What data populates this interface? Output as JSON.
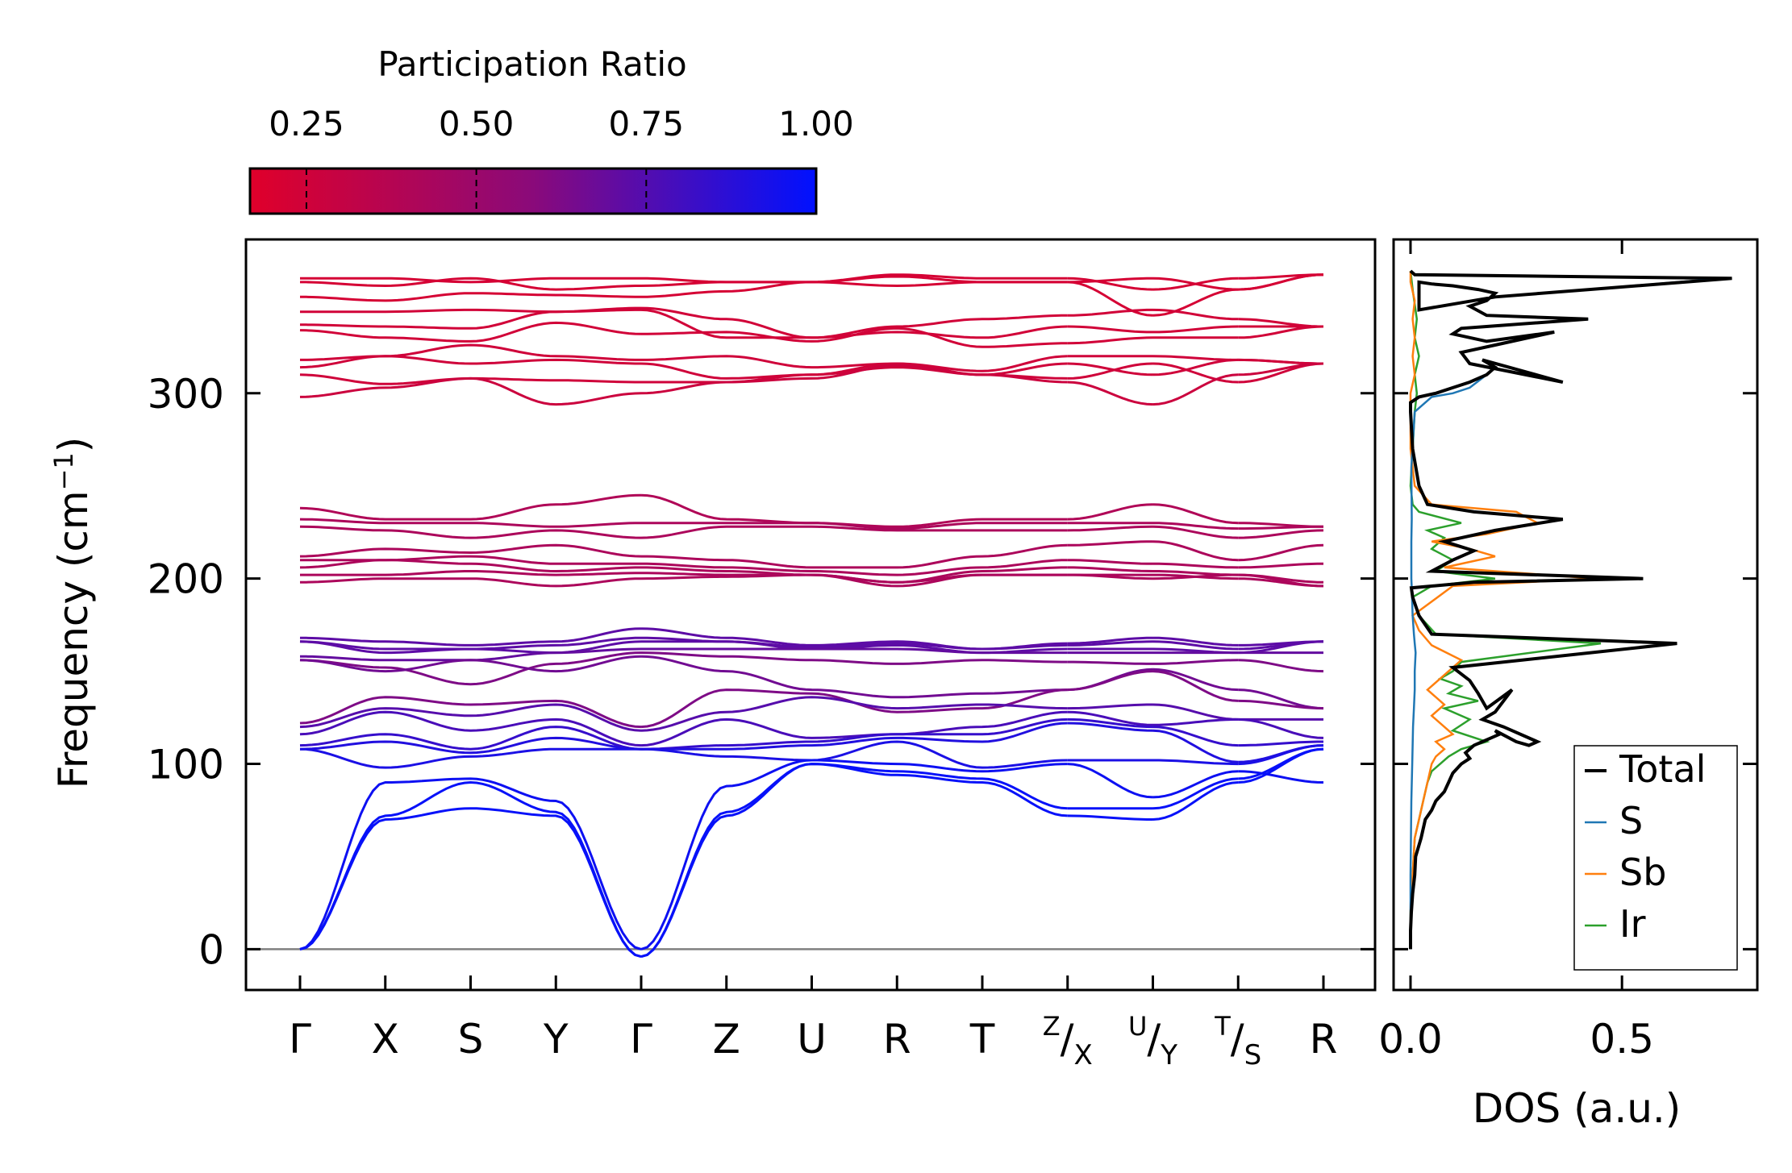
{
  "colorbar": {
    "title": "Participation Ratio",
    "ticks": [
      "0.25",
      "0.50",
      "0.75",
      "1.00"
    ],
    "tick_values": [
      0.25,
      0.5,
      0.75,
      1.0
    ],
    "range": [
      0.167,
      1.0
    ],
    "color_low": "#e0002a",
    "color_mid": "#8a0a7a",
    "color_high": "#0011ff"
  },
  "chart_data": [
    {
      "type": "line",
      "name": "phonon-band-structure",
      "ylabel_prefix": "Frequency (cm",
      "ylabel_exp": "−1",
      "ylabel_suffix": ")",
      "ylim": [
        -22,
        383
      ],
      "yticks": [
        0,
        100,
        200,
        300
      ],
      "yticklabels": [
        "0",
        "100",
        "200",
        "300"
      ],
      "zero_line_color": "#808080",
      "path_labels": [
        {
          "main": "Γ"
        },
        {
          "main": "X"
        },
        {
          "main": "S"
        },
        {
          "main": "Y"
        },
        {
          "main": "Γ"
        },
        {
          "main": "Z"
        },
        {
          "main": "U"
        },
        {
          "main": "R"
        },
        {
          "main": "T"
        },
        {
          "sup": "Z",
          "main": "/X"
        },
        {
          "sup": "U",
          "main": "/Y"
        },
        {
          "sup": "T",
          "main": "/S"
        },
        {
          "main": "R"
        }
      ],
      "segments": [
        {
          "from": 0,
          "to": 4
        },
        {
          "from": 4,
          "to": 9
        },
        {
          "from": 9,
          "to": 10
        },
        {
          "from": 10,
          "to": 11
        },
        {
          "from": 11,
          "to": 12
        }
      ],
      "bands": [
        {
          "pr": 0.22,
          "values": [
            362,
            362,
            360,
            362,
            362,
            360,
            360,
            364,
            362,
            362,
            356,
            362,
            364
          ]
        },
        {
          "pr": 0.22,
          "values": [
            360,
            358,
            362,
            356,
            358,
            360,
            360,
            363,
            360,
            360,
            362,
            356,
            364
          ]
        },
        {
          "pr": 0.22,
          "values": [
            352,
            350,
            354,
            353,
            352,
            355,
            360,
            358,
            360,
            360,
            342,
            356,
            364
          ]
        },
        {
          "pr": 0.24,
          "values": [
            344,
            344,
            345,
            344,
            346,
            340,
            330,
            336,
            340,
            342,
            345,
            340,
            336
          ]
        },
        {
          "pr": 0.24,
          "values": [
            337,
            336,
            335,
            344,
            345,
            330,
            330,
            333,
            330,
            336,
            333,
            336,
            336
          ]
        },
        {
          "pr": 0.24,
          "values": [
            334,
            330,
            328,
            338,
            332,
            333,
            328,
            335,
            325,
            327,
            330,
            330,
            336
          ]
        },
        {
          "pr": 0.25,
          "values": [
            318,
            320,
            326,
            320,
            318,
            320,
            314,
            316,
            312,
            320,
            320,
            318,
            316
          ]
        },
        {
          "pr": 0.25,
          "values": [
            314,
            320,
            316,
            318,
            316,
            308,
            310,
            316,
            310,
            316,
            310,
            318,
            316
          ]
        },
        {
          "pr": 0.25,
          "values": [
            310,
            305,
            308,
            307,
            306,
            306,
            310,
            314,
            310,
            308,
            316,
            306,
            316
          ]
        },
        {
          "pr": 0.27,
          "values": [
            298,
            303,
            308,
            294,
            300,
            306,
            308,
            315,
            310,
            306,
            294,
            310,
            316
          ]
        },
        {
          "pr": 0.4,
          "values": [
            238,
            232,
            232,
            240,
            245,
            232,
            230,
            228,
            232,
            232,
            240,
            230,
            228
          ]
        },
        {
          "pr": 0.42,
          "values": [
            232,
            230,
            230,
            228,
            230,
            230,
            230,
            227,
            230,
            230,
            230,
            227,
            228
          ]
        },
        {
          "pr": 0.42,
          "values": [
            228,
            226,
            222,
            226,
            222,
            228,
            228,
            226,
            226,
            226,
            228,
            222,
            226
          ]
        },
        {
          "pr": 0.42,
          "values": [
            212,
            216,
            214,
            218,
            212,
            210,
            206,
            206,
            212,
            218,
            220,
            210,
            218
          ]
        },
        {
          "pr": 0.42,
          "values": [
            210,
            210,
            212,
            208,
            208,
            206,
            204,
            202,
            206,
            210,
            208,
            206,
            208
          ]
        },
        {
          "pr": 0.42,
          "values": [
            206,
            210,
            208,
            204,
            206,
            204,
            202,
            198,
            204,
            206,
            204,
            202,
            198
          ]
        },
        {
          "pr": 0.42,
          "values": [
            202,
            202,
            204,
            202,
            203,
            202,
            202,
            198,
            202,
            202,
            202,
            200,
            196
          ]
        },
        {
          "pr": 0.42,
          "values": [
            198,
            200,
            200,
            196,
            200,
            201,
            202,
            196,
            202,
            202,
            200,
            202,
            196
          ]
        },
        {
          "pr": 0.72,
          "values": [
            168,
            166,
            164,
            166,
            173,
            168,
            164,
            166,
            162,
            165,
            168,
            164,
            166
          ]
        },
        {
          "pr": 0.72,
          "values": [
            166,
            162,
            162,
            164,
            168,
            166,
            163,
            165,
            162,
            164,
            166,
            162,
            166
          ]
        },
        {
          "pr": 0.72,
          "values": [
            166,
            160,
            162,
            160,
            166,
            166,
            162,
            164,
            160,
            162,
            162,
            160,
            166
          ]
        },
        {
          "pr": 0.7,
          "values": [
            158,
            156,
            156,
            160,
            162,
            162,
            162,
            162,
            160,
            160,
            160,
            160,
            160
          ]
        },
        {
          "pr": 0.62,
          "values": [
            156,
            152,
            143,
            154,
            160,
            158,
            156,
            154,
            156,
            155,
            154,
            156,
            150
          ]
        },
        {
          "pr": 0.66,
          "values": [
            156,
            150,
            156,
            150,
            158,
            150,
            140,
            136,
            138,
            140,
            151,
            140,
            130
          ]
        },
        {
          "pr": 0.62,
          "values": [
            122,
            136,
            132,
            134,
            120,
            140,
            138,
            128,
            130,
            140,
            150,
            134,
            130
          ]
        },
        {
          "pr": 0.74,
          "values": [
            120,
            130,
            126,
            132,
            118,
            128,
            136,
            130,
            132,
            130,
            132,
            124,
            124
          ]
        },
        {
          "pr": 0.78,
          "values": [
            116,
            128,
            118,
            124,
            110,
            124,
            114,
            116,
            120,
            128,
            121,
            124,
            114
          ]
        },
        {
          "pr": 0.84,
          "values": [
            110,
            116,
            108,
            120,
            108,
            110,
            112,
            116,
            116,
            124,
            120,
            110,
            112
          ]
        },
        {
          "pr": 0.9,
          "values": [
            108,
            112,
            106,
            114,
            108,
            108,
            110,
            114,
            112,
            122,
            118,
            101,
            110
          ]
        },
        {
          "pr": 0.92,
          "values": [
            108,
            98,
            104,
            108,
            108,
            104,
            102,
            112,
            98,
            102,
            102,
            100,
            110
          ]
        },
        {
          "pr": 0.96,
          "values": [
            0,
            90,
            92,
            80,
            0,
            88,
            102,
            100,
            96,
            100,
            82,
            96,
            90
          ]
        },
        {
          "pr": 0.98,
          "values": [
            0,
            72,
            90,
            74,
            -4,
            74,
            100,
            96,
            92,
            76,
            76,
            92,
            108
          ]
        },
        {
          "pr": 0.98,
          "values": [
            0,
            70,
            76,
            72,
            -4,
            72,
            100,
            94,
            90,
            72,
            70,
            90,
            108
          ]
        }
      ]
    },
    {
      "type": "line",
      "name": "phonon-dos",
      "xlabel": "DOS (a.u.)",
      "xlim": [
        -0.04,
        0.82
      ],
      "xticks": [
        0.0,
        0.5
      ],
      "xticklabels": [
        "0.0",
        "0.5"
      ],
      "ylim": [
        -22,
        383
      ],
      "legend_position": "bottom-right",
      "series": [
        {
          "name": "Total",
          "color": "#000000",
          "x": [
            0,
            0,
            0.002,
            0.005,
            0.01,
            0.012,
            0.025,
            0.035,
            0.05,
            0.06,
            0.08,
            0.09,
            0.1,
            0.12,
            0.14,
            0.13,
            0.15,
            0.17,
            0.19,
            0.21,
            0.2,
            0.25,
            0.28,
            0.3,
            0.22,
            0.17,
            0.2,
            0.24,
            0.21,
            0.18,
            0.16,
            0.14,
            0.1,
            0.63,
            0.05,
            0.02,
            0.005,
            0.002,
            0.15,
            0.55,
            0.05,
            0.1,
            0.15,
            0.08,
            0.2,
            0.36,
            0.15,
            0.04,
            0.02,
            0.005,
            0,
            0,
            0.02,
            0.06,
            0.1,
            0.14,
            0.18,
            0.2,
            0.17,
            0.36,
            0.14,
            0.12,
            0.2,
            0.34,
            0.18,
            0.1,
            0.12,
            0.18,
            0.42,
            0.18,
            0.14,
            0.18,
            0.2,
            0.16,
            0.1,
            0.05,
            0.02,
            0.02,
            0.2,
            0.76,
            0.01,
            0
          ],
          "y": [
            0,
            10,
            20,
            30,
            40,
            50,
            60,
            70,
            75,
            80,
            85,
            90,
            95,
            100,
            103,
            106,
            110,
            112,
            114,
            116,
            118,
            112,
            110,
            112,
            120,
            124,
            128,
            140,
            135,
            130,
            138,
            145,
            152,
            165,
            170,
            180,
            190,
            195,
            198,
            200,
            204,
            210,
            215,
            220,
            226,
            232,
            236,
            240,
            250,
            270,
            290,
            295,
            298,
            300,
            303,
            306,
            310,
            314,
            318,
            306,
            316,
            322,
            326,
            333,
            328,
            332,
            335,
            336,
            340,
            342,
            347,
            350,
            354,
            356,
            358,
            359,
            360,
            345,
            352,
            362,
            364,
            366
          ]
        },
        {
          "name": "S",
          "color": "#1f77b4",
          "x": [
            0,
            0,
            0.002,
            0.004,
            0.005,
            0.006,
            0.008,
            0.01,
            0.01,
            0.012,
            0.01,
            0.008,
            0.005,
            0.003,
            0.002,
            0.002,
            0.003,
            0.002,
            0.01,
            0.05,
            0.1,
            0.14,
            0.18,
            0.2,
            0.17,
            0.36,
            0.14,
            0.12,
            0.2,
            0.34,
            0.18,
            0.1,
            0.12,
            0.18,
            0.42,
            0.18,
            0.14,
            0.18,
            0.2,
            0.16,
            0.1,
            0.05,
            0.02,
            0.02,
            0.2,
            0.74,
            0.01,
            0
          ],
          "y": [
            0,
            40,
            80,
            100,
            110,
            120,
            130,
            140,
            150,
            160,
            165,
            170,
            180,
            195,
            200,
            220,
            232,
            260,
            290,
            298,
            300,
            303,
            310,
            314,
            318,
            306,
            316,
            322,
            326,
            333,
            328,
            332,
            335,
            336,
            340,
            342,
            347,
            350,
            354,
            356,
            358,
            359,
            360,
            345,
            352,
            362,
            364,
            366
          ]
        },
        {
          "name": "Sb",
          "color": "#ff7f0e",
          "x": [
            0,
            0,
            0.005,
            0.01,
            0.02,
            0.03,
            0.04,
            0.05,
            0.06,
            0.08,
            0.06,
            0.1,
            0.08,
            0.05,
            0.08,
            0.04,
            0.07,
            0.09,
            0.12,
            0.05,
            0.02,
            0.005,
            0.1,
            0.44,
            0.08,
            0.2,
            0.14,
            0.05,
            0.18,
            0.3,
            0.25,
            0.05,
            0.01,
            0,
            0,
            0.01,
            0.005,
            0.01,
            0.005,
            0.01,
            0,
            0
          ],
          "y": [
            0,
            20,
            40,
            60,
            70,
            80,
            90,
            100,
            104,
            108,
            112,
            116,
            120,
            126,
            132,
            140,
            146,
            150,
            156,
            164,
            172,
            180,
            196,
            200,
            206,
            212,
            216,
            220,
            224,
            230,
            236,
            240,
            250,
            270,
            300,
            310,
            320,
            330,
            340,
            350,
            360,
            366
          ]
        },
        {
          "name": "Ir",
          "color": "#2ca02c",
          "x": [
            0,
            0,
            0.005,
            0.01,
            0.02,
            0.03,
            0.04,
            0.05,
            0.07,
            0.09,
            0.12,
            0.18,
            0.1,
            0.14,
            0.08,
            0.16,
            0.09,
            0.12,
            0.07,
            0.1,
            0.12,
            0.45,
            0.06,
            0.02,
            0.005,
            0.05,
            0.2,
            0.06,
            0.1,
            0.05,
            0.08,
            0.04,
            0.12,
            0.02,
            0.005,
            0,
            0.01,
            0.015,
            0.01,
            0.02,
            0.01,
            0.015,
            0.005,
            0
          ],
          "y": [
            0,
            20,
            40,
            60,
            70,
            80,
            90,
            96,
            100,
            104,
            108,
            112,
            118,
            124,
            130,
            134,
            138,
            142,
            146,
            150,
            155,
            165,
            170,
            180,
            190,
            196,
            200,
            204,
            210,
            216,
            222,
            226,
            230,
            236,
            240,
            250,
            290,
            300,
            310,
            320,
            330,
            340,
            356,
            366
          ]
        }
      ]
    }
  ]
}
